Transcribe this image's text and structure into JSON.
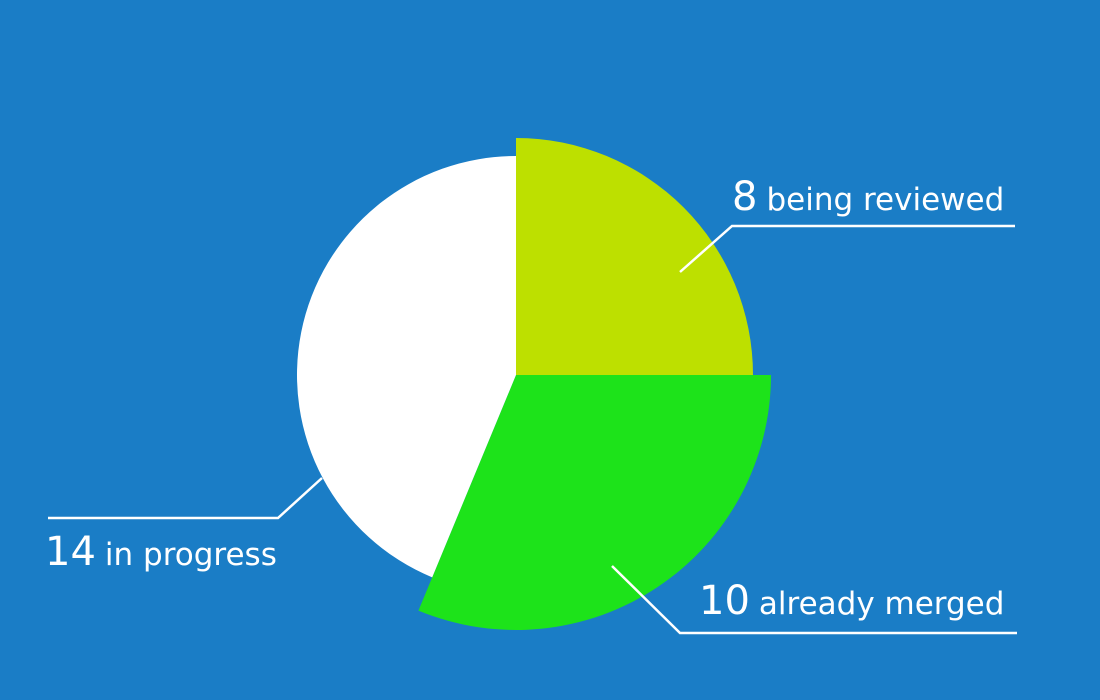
{
  "background_color": "#1a7dc6",
  "leader_color": "#ffffff",
  "chart_data": {
    "type": "pie",
    "title": "",
    "exploded": true,
    "slices": [
      {
        "value": 8,
        "label": "being reviewed",
        "display_value": "8",
        "color": "#bde000"
      },
      {
        "value": 10,
        "label": "already merged",
        "display_value": "10",
        "color": "#1de31a"
      },
      {
        "value": 14,
        "label": "in progress",
        "display_value": "14",
        "color": "#ffffff"
      }
    ]
  }
}
